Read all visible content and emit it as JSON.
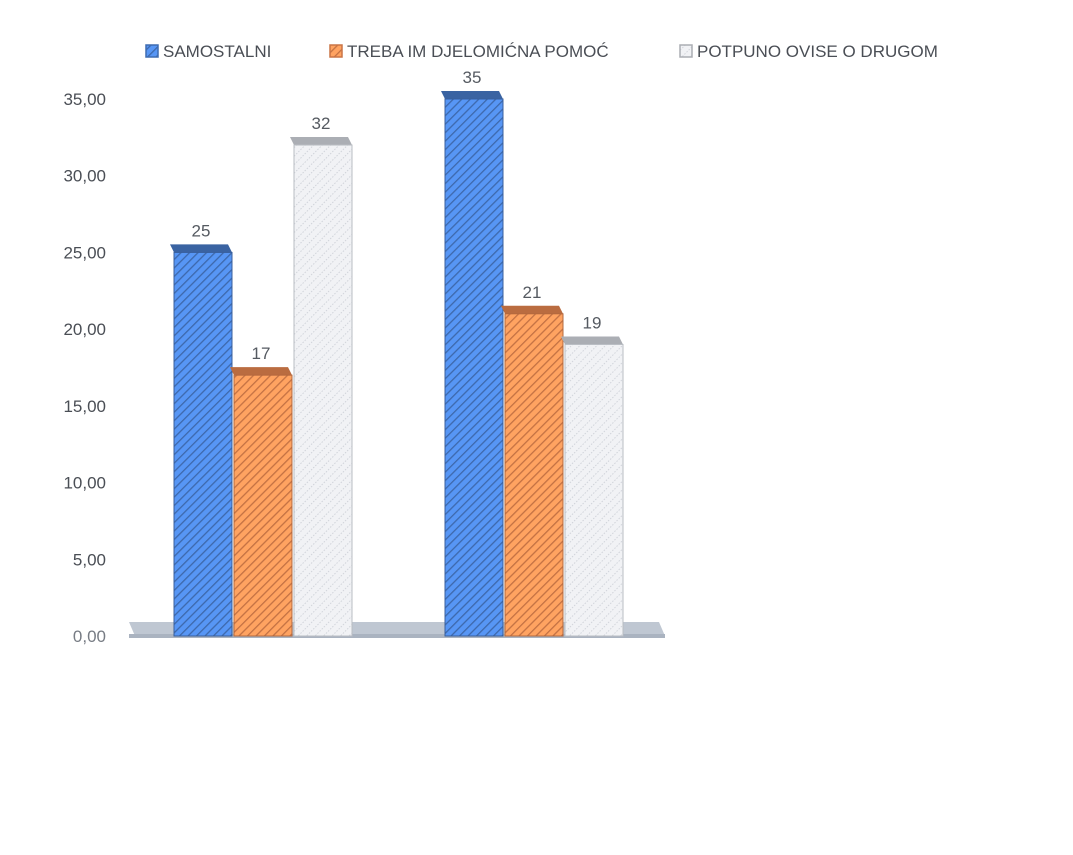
{
  "chart_data": {
    "type": "bar",
    "style": "3d-clustered-column-hatched",
    "categories": [
      "",
      ""
    ],
    "series": [
      {
        "name": "SAMOSTALNI",
        "values": [
          25,
          35
        ],
        "color": "#4a7fd0",
        "pattern": "diagonal-hatch"
      },
      {
        "name": "TREBA IM DJELOMIĆNA POMOĆ",
        "values": [
          17,
          21
        ],
        "color": "#ee8a52",
        "pattern": "diagonal-hatch"
      },
      {
        "name": "POTPUNO OVISE O DRUGOM",
        "values": [
          32,
          19
        ],
        "color": "#c9cdd4",
        "pattern": "dotted-hatch"
      }
    ],
    "data_labels": [
      [
        "25",
        "35"
      ],
      [
        "17",
        "21"
      ],
      [
        "32",
        "19"
      ]
    ],
    "yticks": [
      "0,00",
      "5,00",
      "10,00",
      "15,00",
      "20,00",
      "25,00",
      "30,00",
      "35,00"
    ],
    "ylim": [
      0,
      35
    ],
    "title": "",
    "xlabel": "",
    "ylabel": "",
    "grid": false,
    "legend_position": "top"
  }
}
